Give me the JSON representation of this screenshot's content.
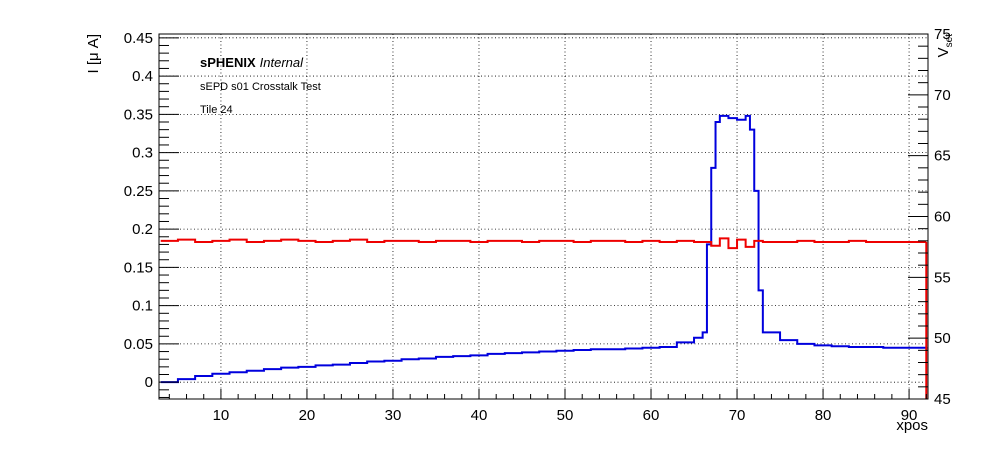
{
  "chart_data": {
    "type": "line",
    "title": "",
    "xlabel": "xpos",
    "ylabel": "I [μ A]",
    "y2label_main": "V",
    "y2label_sub": "set",
    "xlim": [
      2.8,
      92.2
    ],
    "ylim": [
      -0.022,
      0.455
    ],
    "y2lim": [
      45,
      75
    ],
    "xticks": [
      10,
      20,
      30,
      40,
      50,
      60,
      70,
      80,
      90
    ],
    "xtick_labels": [
      "10",
      "20",
      "30",
      "40",
      "50",
      "60",
      "70",
      "80",
      "90"
    ],
    "yticks": [
      0,
      0.05,
      0.1,
      0.15,
      0.2,
      0.25,
      0.3,
      0.35,
      0.4,
      0.45
    ],
    "ytick_labels": [
      "0",
      "0.05",
      "0.1",
      "0.15",
      "0.2",
      "0.25",
      "0.3",
      "0.35",
      "0.4",
      "0.45"
    ],
    "y2ticks": [
      45,
      50,
      55,
      60,
      65,
      70,
      75
    ],
    "y2tick_labels": [
      "45",
      "50",
      "55",
      "60",
      "65",
      "70",
      "75"
    ],
    "grid": true,
    "annotations": {
      "brand_bold": "sPHENIX",
      "brand_italic": "Internal",
      "line2": "sEPD s01 Crosstalk Test",
      "line3": "Tile 24"
    },
    "series": [
      {
        "axis": "left",
        "color": "#0000dd",
        "x": [
          3,
          5,
          7,
          9,
          11,
          13,
          15,
          17,
          19,
          21,
          23,
          25,
          27,
          29,
          31,
          33,
          35,
          37,
          39,
          41,
          43,
          45,
          47,
          49,
          51,
          53,
          55,
          57,
          59,
          61,
          63,
          65,
          66,
          66.5,
          67,
          67.5,
          68,
          69,
          70,
          71,
          71.5,
          72,
          72.5,
          73,
          75,
          77,
          79,
          81,
          83,
          85,
          87,
          89,
          91,
          92
        ],
        "y": [
          0.0,
          0.004,
          0.008,
          0.011,
          0.013,
          0.015,
          0.017,
          0.019,
          0.02,
          0.022,
          0.023,
          0.025,
          0.027,
          0.028,
          0.03,
          0.031,
          0.033,
          0.034,
          0.035,
          0.037,
          0.038,
          0.039,
          0.04,
          0.041,
          0.042,
          0.043,
          0.043,
          0.044,
          0.045,
          0.046,
          0.052,
          0.058,
          0.065,
          0.18,
          0.28,
          0.34,
          0.348,
          0.345,
          0.343,
          0.348,
          0.33,
          0.25,
          0.12,
          0.065,
          0.055,
          0.05,
          0.048,
          0.047,
          0.046,
          0.046,
          0.045,
          0.045,
          0.045,
          0.046
        ]
      },
      {
        "axis": "right",
        "color": "#ee0000",
        "x": [
          3,
          5,
          7,
          9,
          11,
          13,
          15,
          17,
          19,
          21,
          23,
          25,
          27,
          29,
          31,
          33,
          35,
          37,
          39,
          41,
          43,
          45,
          47,
          49,
          51,
          53,
          55,
          57,
          59,
          61,
          63,
          65,
          66,
          67,
          68,
          69,
          70,
          71,
          72,
          73,
          75,
          77,
          79,
          81,
          83,
          85,
          87,
          89,
          91,
          92
        ],
        "y": [
          58.0,
          58.1,
          57.9,
          58.0,
          58.1,
          57.9,
          58.0,
          58.1,
          58.0,
          57.9,
          58.0,
          58.1,
          57.9,
          58.0,
          58.0,
          57.9,
          58.0,
          58.0,
          57.9,
          58.0,
          58.0,
          57.9,
          58.0,
          58.0,
          57.9,
          58.0,
          58.0,
          57.9,
          58.0,
          57.9,
          58.0,
          57.9,
          57.9,
          57.6,
          58.2,
          57.4,
          58.1,
          57.5,
          58.0,
          57.9,
          57.9,
          58.0,
          57.9,
          57.9,
          58.0,
          57.9,
          57.9,
          57.9,
          57.9,
          57.9
        ]
      }
    ]
  }
}
